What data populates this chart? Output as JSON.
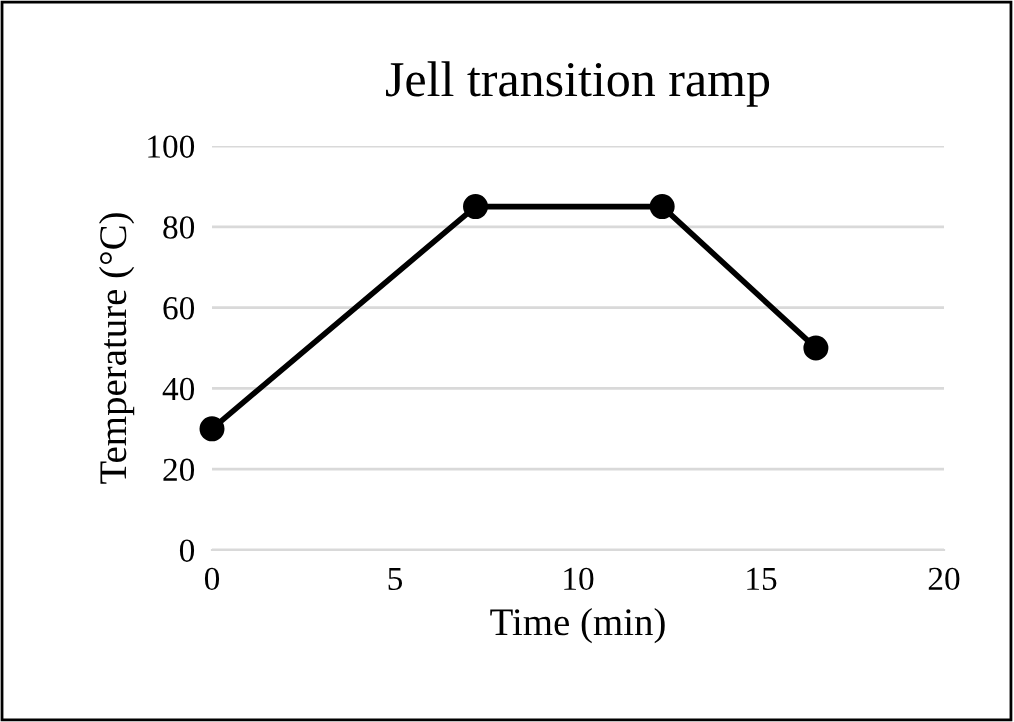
{
  "chart_data": {
    "type": "line",
    "title": "Jell transition ramp",
    "xlabel": "Time (min)",
    "ylabel": "Temperature (°C)",
    "x": [
      0,
      7.2,
      12.3,
      16.5
    ],
    "series": [
      {
        "color": "#000000",
        "values": [
          30,
          85,
          85,
          50
        ]
      }
    ],
    "xlim": [
      0,
      20
    ],
    "xticks": [
      0,
      5,
      10,
      15,
      20
    ],
    "ylim": [
      0,
      100
    ],
    "yticks": [
      0,
      20,
      40,
      60,
      80,
      100
    ],
    "grid": "y",
    "marker": "circle",
    "line_style": "solid"
  }
}
